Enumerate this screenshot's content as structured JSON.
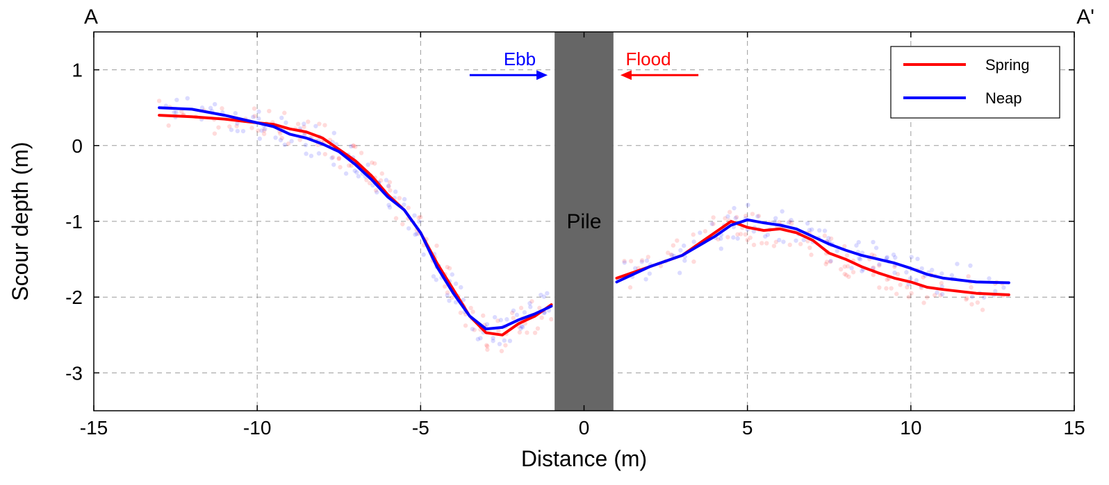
{
  "chart_data": {
    "type": "line",
    "xlabel": "Distance (m)",
    "ylabel": "Scour depth (m)",
    "xlim": [
      -15,
      15
    ],
    "ylim": [
      -3.5,
      1.5
    ],
    "xticks": [
      "-15",
      "-10",
      "-5",
      "0",
      "5",
      "10",
      "15"
    ],
    "yticks": [
      "1",
      "0",
      "-1",
      "-2",
      "-3"
    ],
    "grid": "dashed",
    "legend_position": "top-right",
    "corner_labels": {
      "left": "A",
      "right": "A'"
    },
    "pile": {
      "label": "Pile",
      "x_range": [
        -0.9,
        0.9
      ],
      "color": "#666666"
    },
    "arrows": [
      {
        "label": "Ebb",
        "color": "#0000ff",
        "x_from": -3.5,
        "x_to": -1.2,
        "y": 0.93,
        "direction": "right"
      },
      {
        "label": "Flood",
        "color": "#ff0000",
        "x_from": 3.5,
        "x_to": 1.2,
        "y": 0.93,
        "direction": "left"
      }
    ],
    "series": [
      {
        "name": "Spring",
        "color": "#ff0000",
        "x": [
          -13,
          -12,
          -11,
          -10,
          -9.5,
          -9,
          -8.5,
          -8,
          -7.5,
          -7,
          -6.5,
          -6,
          -5.5,
          -5,
          -4.5,
          -4,
          -3.5,
          -3,
          -2.5,
          -2,
          -1.5,
          -1,
          1,
          2,
          3,
          4,
          4.5,
          5,
          5.5,
          6,
          6.5,
          7,
          7.5,
          8,
          8.5,
          9,
          9.5,
          10,
          10.5,
          11,
          12,
          13
        ],
        "y": [
          0.4,
          0.38,
          0.35,
          0.3,
          0.28,
          0.22,
          0.18,
          0.1,
          -0.05,
          -0.2,
          -0.4,
          -0.65,
          -0.85,
          -1.15,
          -1.55,
          -1.9,
          -2.25,
          -2.47,
          -2.5,
          -2.35,
          -2.25,
          -2.1,
          -1.75,
          -1.6,
          -1.45,
          -1.15,
          -1.0,
          -1.08,
          -1.12,
          -1.1,
          -1.15,
          -1.25,
          -1.42,
          -1.5,
          -1.6,
          -1.68,
          -1.75,
          -1.8,
          -1.87,
          -1.9,
          -1.95,
          -1.97
        ]
      },
      {
        "name": "Neap",
        "color": "#0000ff",
        "x": [
          -13,
          -12,
          -11,
          -10,
          -9.5,
          -9,
          -8.5,
          -8,
          -7.5,
          -7,
          -6.5,
          -6,
          -5.5,
          -5,
          -4.5,
          -4,
          -3.5,
          -3,
          -2.5,
          -2,
          -1.5,
          -1,
          1,
          2,
          3,
          4,
          4.5,
          5,
          5.5,
          6,
          6.5,
          7,
          7.5,
          8,
          8.5,
          9,
          9.5,
          10,
          10.5,
          11,
          12,
          13
        ],
        "y": [
          0.5,
          0.48,
          0.4,
          0.3,
          0.25,
          0.15,
          0.1,
          0.02,
          -0.08,
          -0.25,
          -0.45,
          -0.68,
          -0.85,
          -1.15,
          -1.6,
          -1.95,
          -2.25,
          -2.42,
          -2.4,
          -2.3,
          -2.22,
          -2.12,
          -1.8,
          -1.6,
          -1.45,
          -1.2,
          -1.05,
          -0.98,
          -1.02,
          -1.05,
          -1.1,
          -1.2,
          -1.3,
          -1.38,
          -1.45,
          -1.5,
          -1.55,
          -1.62,
          -1.7,
          -1.75,
          -1.8,
          -1.81
        ]
      }
    ]
  }
}
